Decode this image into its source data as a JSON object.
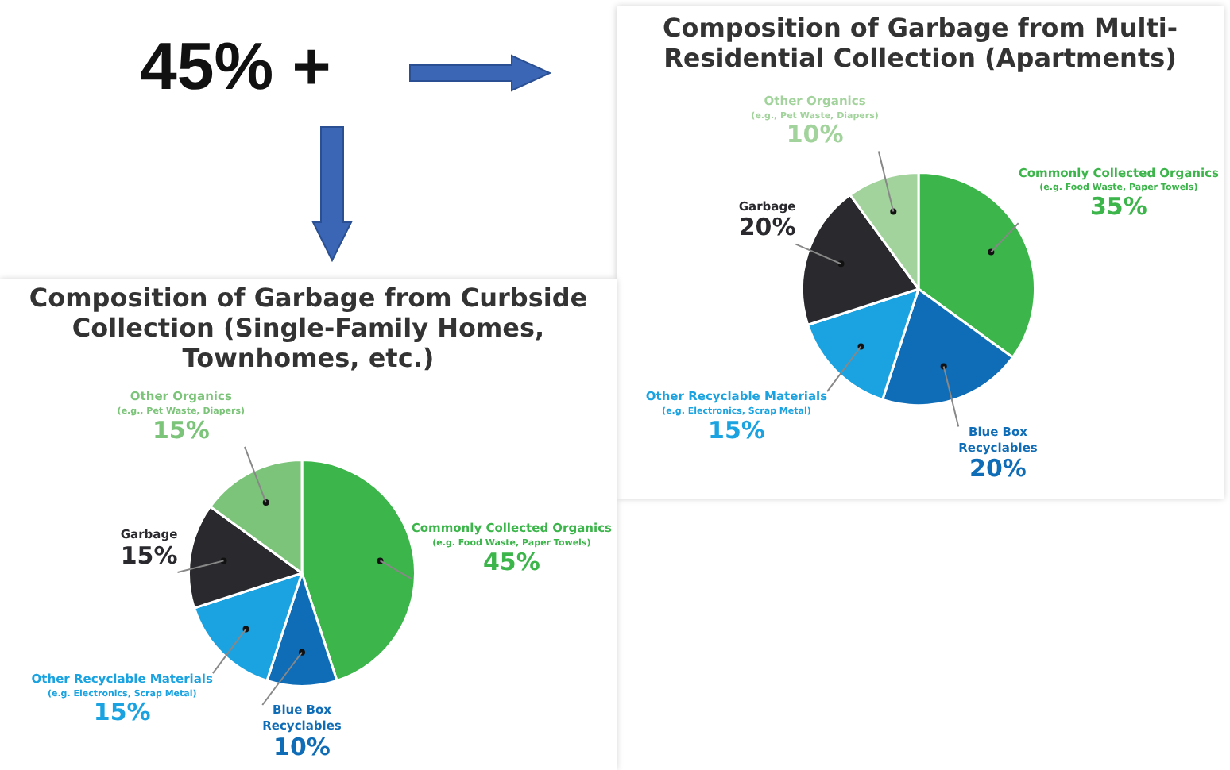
{
  "chart_data": [
    {
      "type": "other",
      "title": "45% +"
    },
    {
      "type": "pie",
      "title": "Composition of Garbage from Multi-Residential Collection (Apartments)",
      "categories": [
        "Commonly Collected Organics\n(e.g. Food Waste, Paper Towels)",
        "Blue Box\nRecyclables",
        "Other Recyclable Materials\n(e.g. Electronics, Scrap Metal)",
        "Garbage",
        "Other Organics\n(e.g., Pet Waste, Diapers)"
      ],
      "values": [
        35,
        20,
        15,
        20,
        10
      ],
      "value_labels": [
        "35%",
        "20%",
        "15%",
        "20%",
        "10%"
      ],
      "colors": [
        "#3cb54a",
        "#0f6cb6",
        "#1aa3e0",
        "#2a2a2e",
        "#a3d39c"
      ]
    },
    {
      "type": "pie",
      "title": "Composition of Garbage from Curbside Collection (Single-Family Homes, Townhomes, etc.)",
      "categories": [
        "Commonly Collected Organics\n(e.g. Food Waste, Paper Towels)",
        "Blue Box\nRecyclables",
        "Other Recyclable Materials\n(e.g. Electronics, Scrap Metal)",
        "Garbage",
        "Other Organics\n(e.g., Pet Waste, Diapers)"
      ],
      "values": [
        45,
        10,
        15,
        15,
        15
      ],
      "value_labels": [
        "45%",
        "10%",
        "15%",
        "15%",
        "15%"
      ],
      "colors": [
        "#3cb54a",
        "#0f6cb6",
        "#1aa3e0",
        "#2a2a2e",
        "#7cc47a"
      ]
    }
  ]
}
